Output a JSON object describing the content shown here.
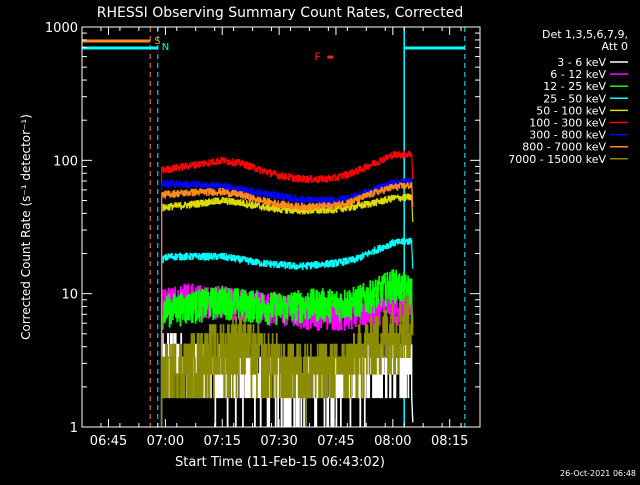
{
  "title": "RHESSI Observing Summary Count Rates, Corrected",
  "xlabel": "Start Time (11-Feb-15 06:43:02)",
  "ylabel": "Corrected Count Rate (s⁻¹ detector⁻¹)",
  "footer_timestamp": "26-Oct-2021 06:48",
  "detector_info": [
    "Det 1,3,5,6,7,9,",
    "Att 0"
  ],
  "flags": {
    "S": "S",
    "N": "N",
    "F": "F"
  },
  "colors": {
    "background": "#000000",
    "axes": "#ffffff",
    "saa": "#ff8c1a",
    "night": "#00ffff",
    "flare": "#ff2020"
  },
  "chart_data": {
    "type": "line",
    "x_unit": "time (11-Feb-15, UT)",
    "xlim": [
      "06:38",
      "08:23"
    ],
    "xticks": [
      "06:45",
      "07:00",
      "07:15",
      "07:30",
      "07:45",
      "08:00",
      "08:15"
    ],
    "ylim": [
      1,
      1000
    ],
    "yscale": "log",
    "yticks": [
      "1",
      "10",
      "100",
      "1000"
    ],
    "grid": false,
    "legend_position": "right",
    "series": [
      {
        "name": "3 - 6 keV",
        "color": "#ffffff",
        "data": [
          [
            "06:59",
            3
          ],
          [
            "07:01",
            3.5
          ],
          [
            "07:05",
            3
          ],
          [
            "07:10",
            2.8
          ],
          [
            "07:15",
            2.6
          ],
          [
            "07:20",
            2.5
          ],
          [
            "07:25",
            2.4
          ],
          [
            "07:30",
            2.2
          ],
          [
            "07:35",
            2.2
          ],
          [
            "07:40",
            2.3
          ],
          [
            "07:45",
            2.3
          ],
          [
            "07:50",
            2.5
          ],
          [
            "07:55",
            2.7
          ],
          [
            "08:00",
            3
          ],
          [
            "08:05",
            3.2
          ]
        ]
      },
      {
        "name": "6 - 12 keV",
        "color": "#ff00ff",
        "data": [
          [
            "06:59",
            8.5
          ],
          [
            "07:01",
            9
          ],
          [
            "07:05",
            9.5
          ],
          [
            "07:10",
            9
          ],
          [
            "07:15",
            8.8
          ],
          [
            "07:20",
            8.5
          ],
          [
            "07:25",
            8.2
          ],
          [
            "07:30",
            7.8
          ],
          [
            "07:35",
            7.5
          ],
          [
            "07:40",
            7.4
          ],
          [
            "07:45",
            7.3
          ],
          [
            "07:50",
            7.4
          ],
          [
            "07:55",
            7.8
          ],
          [
            "08:00",
            8
          ],
          [
            "08:05",
            8
          ]
        ]
      },
      {
        "name": "12 - 25 keV",
        "color": "#00ff00",
        "data": [
          [
            "06:59",
            7.5
          ],
          [
            "07:01",
            7.8
          ],
          [
            "07:05",
            8
          ],
          [
            "07:10",
            8.5
          ],
          [
            "07:15",
            9
          ],
          [
            "07:20",
            8.5
          ],
          [
            "07:25",
            8.2
          ],
          [
            "07:30",
            8
          ],
          [
            "07:35",
            8.3
          ],
          [
            "07:40",
            8.5
          ],
          [
            "07:45",
            8.5
          ],
          [
            "07:50",
            8.8
          ],
          [
            "07:55",
            10
          ],
          [
            "08:00",
            12
          ],
          [
            "08:05",
            10.5
          ]
        ]
      },
      {
        "name": "25 - 50 keV",
        "color": "#00ffff",
        "data": [
          [
            "06:59",
            18
          ],
          [
            "07:01",
            19
          ],
          [
            "07:05",
            19
          ],
          [
            "07:10",
            19
          ],
          [
            "07:15",
            19
          ],
          [
            "07:20",
            18
          ],
          [
            "07:25",
            17
          ],
          [
            "07:30",
            16.5
          ],
          [
            "07:35",
            16
          ],
          [
            "07:40",
            16.5
          ],
          [
            "07:45",
            17
          ],
          [
            "07:50",
            18
          ],
          [
            "07:55",
            21
          ],
          [
            "08:00",
            24
          ],
          [
            "08:05",
            25
          ]
        ]
      },
      {
        "name": "50 - 100 keV",
        "color": "#dcdc00",
        "data": [
          [
            "06:59",
            44
          ],
          [
            "07:01",
            45
          ],
          [
            "07:05",
            46
          ],
          [
            "07:10",
            48
          ],
          [
            "07:15",
            50
          ],
          [
            "07:20",
            48
          ],
          [
            "07:25",
            45
          ],
          [
            "07:30",
            43
          ],
          [
            "07:35",
            42
          ],
          [
            "07:40",
            42
          ],
          [
            "07:45",
            43
          ],
          [
            "07:50",
            45
          ],
          [
            "07:55",
            48
          ],
          [
            "08:00",
            52
          ],
          [
            "08:05",
            53
          ]
        ]
      },
      {
        "name": "100 - 300 keV",
        "color": "#ff0000",
        "data": [
          [
            "06:59",
            85
          ],
          [
            "07:01",
            86
          ],
          [
            "07:05",
            90
          ],
          [
            "07:10",
            95
          ],
          [
            "07:15",
            100
          ],
          [
            "07:20",
            95
          ],
          [
            "07:25",
            85
          ],
          [
            "07:30",
            77
          ],
          [
            "07:35",
            73
          ],
          [
            "07:40",
            72
          ],
          [
            "07:45",
            74
          ],
          [
            "07:50",
            82
          ],
          [
            "07:55",
            95
          ],
          [
            "08:00",
            110
          ],
          [
            "08:05",
            112
          ]
        ]
      },
      {
        "name": "300 - 800 keV",
        "color": "#0000ff",
        "data": [
          [
            "06:59",
            66
          ],
          [
            "07:01",
            67
          ],
          [
            "07:05",
            66
          ],
          [
            "07:10",
            65
          ],
          [
            "07:15",
            64
          ],
          [
            "07:20",
            60
          ],
          [
            "07:25",
            57
          ],
          [
            "07:30",
            54
          ],
          [
            "07:35",
            51
          ],
          [
            "07:40",
            50
          ],
          [
            "07:45",
            50
          ],
          [
            "07:50",
            54
          ],
          [
            "07:55",
            60
          ],
          [
            "08:00",
            68
          ],
          [
            "08:05",
            70
          ]
        ]
      },
      {
        "name": "800 - 7000 keV",
        "color": "#ff8c1a",
        "data": [
          [
            "06:59",
            55
          ],
          [
            "07:01",
            56
          ],
          [
            "07:05",
            57
          ],
          [
            "07:10",
            58
          ],
          [
            "07:15",
            58
          ],
          [
            "07:20",
            55
          ],
          [
            "07:25",
            50
          ],
          [
            "07:30",
            47
          ],
          [
            "07:35",
            45
          ],
          [
            "07:40",
            45
          ],
          [
            "07:45",
            46
          ],
          [
            "07:50",
            50
          ],
          [
            "07:55",
            57
          ],
          [
            "08:00",
            63
          ],
          [
            "08:05",
            65
          ]
        ]
      },
      {
        "name": "7000 - 15000 keV",
        "color": "#8c8c00",
        "data": [
          [
            "06:59",
            2.5
          ],
          [
            "07:01",
            2.6
          ],
          [
            "07:05",
            3
          ],
          [
            "07:10",
            3.5
          ],
          [
            "07:15",
            4
          ],
          [
            "07:20",
            4.5
          ],
          [
            "07:25",
            3.5
          ],
          [
            "07:30",
            3
          ],
          [
            "07:35",
            2.8
          ],
          [
            "07:40",
            2.6
          ],
          [
            "07:45",
            2.8
          ],
          [
            "07:50",
            3.5
          ],
          [
            "07:55",
            4.5
          ],
          [
            "08:00",
            5.5
          ],
          [
            "08:05",
            6.5
          ]
        ]
      }
    ],
    "intervals": [
      {
        "label": "S",
        "type": "SAA",
        "color": "#ff8c1a",
        "start": "06:38",
        "end": "06:56"
      },
      {
        "label": "N",
        "type": "night",
        "color": "#00ffff",
        "start": "06:38",
        "end": "06:58"
      },
      {
        "label": "N",
        "type": "night",
        "color": "#00ffff",
        "start": "08:03",
        "end": "08:19"
      }
    ],
    "markers": [
      {
        "label": "F",
        "type": "flare",
        "color": "#ff2020",
        "time": "07:43",
        "value": 600
      }
    ]
  }
}
